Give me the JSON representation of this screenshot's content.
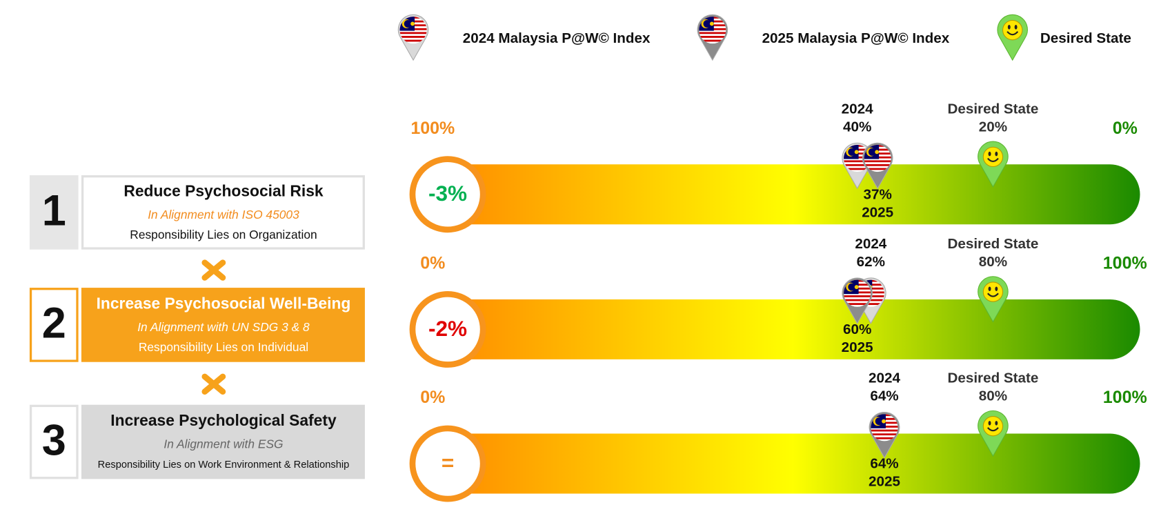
{
  "legend": [
    {
      "label": "2024 Malaysia P@W© Index",
      "color": "#d9d9d9"
    },
    {
      "label": "2025 Malaysia P@W© Index",
      "color": "#8c8c8c"
    },
    {
      "label": "Desired State",
      "color": "#7ed957"
    }
  ],
  "goals": [
    {
      "number": "1",
      "title": "Reduce Psychosocial Risk",
      "alignment": "In Alignment with ISO 45003",
      "responsibility": "Responsibility Lies on Organization"
    },
    {
      "number": "2",
      "title": "Increase Psychosocial Well-Being",
      "alignment": "In Alignment with UN SDG 3 & 8",
      "responsibility": "Responsibility Lies on Individual"
    },
    {
      "number": "3",
      "title": "Increase Psychological Safety",
      "alignment": "In Alignment with ESG",
      "responsibility": "Responsibility Lies on Work Environment & Relationship"
    }
  ],
  "scales": [
    {
      "left_end": {
        "value": 100,
        "label": "100%"
      },
      "right_end": {
        "value": 0,
        "label": "0%"
      },
      "change": "-3%",
      "change_color": "#00b050",
      "index_2024": {
        "label": "2024",
        "value": 40,
        "value_label": "40%"
      },
      "index_2025": {
        "label": "2025",
        "value": 37,
        "value_label": "37%"
      },
      "desired": {
        "label": "Desired State",
        "value": 20,
        "value_label": "20%"
      }
    },
    {
      "left_end": {
        "value": 0,
        "label": "0%"
      },
      "right_end": {
        "value": 100,
        "label": "100%"
      },
      "change": "-2%",
      "change_color": "#e00000",
      "index_2024": {
        "label": "2024",
        "value": 62,
        "value_label": "62%"
      },
      "index_2025": {
        "label": "2025",
        "value": 60,
        "value_label": "60%"
      },
      "desired": {
        "label": "Desired State",
        "value": 80,
        "value_label": "80%"
      }
    },
    {
      "left_end": {
        "value": 0,
        "label": "0%"
      },
      "right_end": {
        "value": 100,
        "label": "100%"
      },
      "change": "=",
      "change_color": "#f28c1e",
      "index_2024": {
        "label": "2024",
        "value": 64,
        "value_label": "64%"
      },
      "index_2025": {
        "label": "2025",
        "value": 64,
        "value_label": "64%"
      },
      "desired": {
        "label": "Desired State",
        "value": 80,
        "value_label": "80%"
      }
    }
  ]
}
